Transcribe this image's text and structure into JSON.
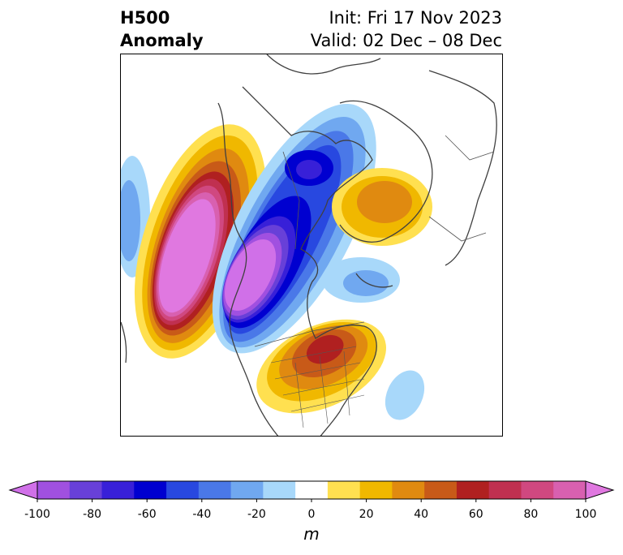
{
  "title": {
    "left_line1": "H500",
    "left_line2": "Anomaly",
    "right_line1": "Init: Fri 17 Nov 2023",
    "right_line2": "Valid: 02 Dec – 08 Dec"
  },
  "colorbar": {
    "ticks": [
      "-100",
      "-80",
      "-60",
      "-40",
      "-20",
      "0",
      "20",
      "40",
      "60",
      "80",
      "100"
    ],
    "unit": "m",
    "colors": [
      "#d070e8",
      "#a050e0",
      "#6840d8",
      "#3820d8",
      "#0000d0",
      "#2848e0",
      "#4a78e8",
      "#70a8f0",
      "#a8d8fa",
      "#ffffff",
      "#ffe050",
      "#f0b800",
      "#e08a10",
      "#c85a18",
      "#b02020",
      "#c03050",
      "#d04880",
      "#d860b0",
      "#e078e0"
    ]
  },
  "map": {
    "features": [
      "height-anomaly-contours",
      "coastlines",
      "country-borders",
      "us-state-borders"
    ]
  }
}
